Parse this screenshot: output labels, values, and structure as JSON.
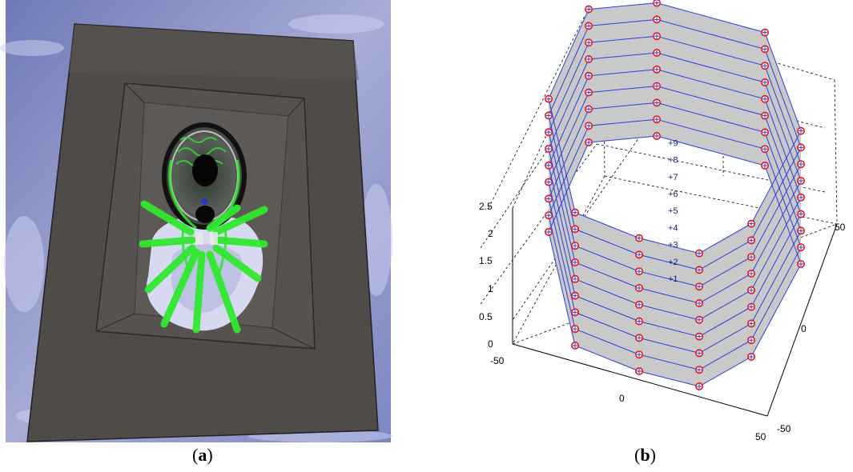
{
  "captions": {
    "a": "a",
    "b": "b"
  },
  "colors": {
    "floor": "#4e4b48",
    "sky": "#8f97c8",
    "tentacle": "#31e831",
    "ring_fill": "#c9c9c9",
    "ring_line": "#2b3fd6",
    "marker": "#e0161d"
  },
  "panel_b": {
    "z_ticks": [
      "0",
      "0.5",
      "1",
      "1.5",
      "2",
      "2.5"
    ],
    "x_ticks": [
      "-50",
      "0",
      "50"
    ],
    "y_ticks": [
      "-50",
      "0",
      "50"
    ],
    "levels": [
      "1",
      "2",
      "3",
      "4",
      "5",
      "6",
      "7",
      "8",
      "9"
    ],
    "ring_count": 9
  }
}
